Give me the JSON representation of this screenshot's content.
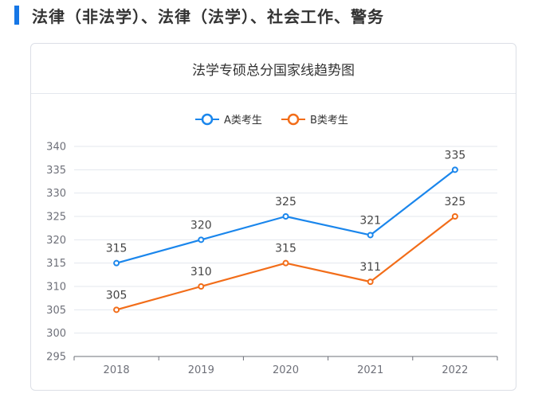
{
  "heading": {
    "text": "法律（非法学）、法律（法学）、社会工作、警务",
    "accent_color": "#1677e6"
  },
  "chart_data": {
    "type": "line",
    "title": "法学专硕总分国家线趋势图",
    "categories": [
      "2018",
      "2019",
      "2020",
      "2021",
      "2022"
    ],
    "series": [
      {
        "name": "A类考生",
        "values": [
          315,
          320,
          325,
          321,
          335
        ],
        "color": "#1a86ec"
      },
      {
        "name": "B类考生",
        "values": [
          305,
          310,
          315,
          311,
          325
        ],
        "color": "#f26d19"
      }
    ],
    "ylim": [
      295,
      340
    ],
    "ytick_step": 5,
    "legend_position": "top-center",
    "grid": true,
    "data_labels": true,
    "xlabel": "",
    "ylabel": ""
  }
}
